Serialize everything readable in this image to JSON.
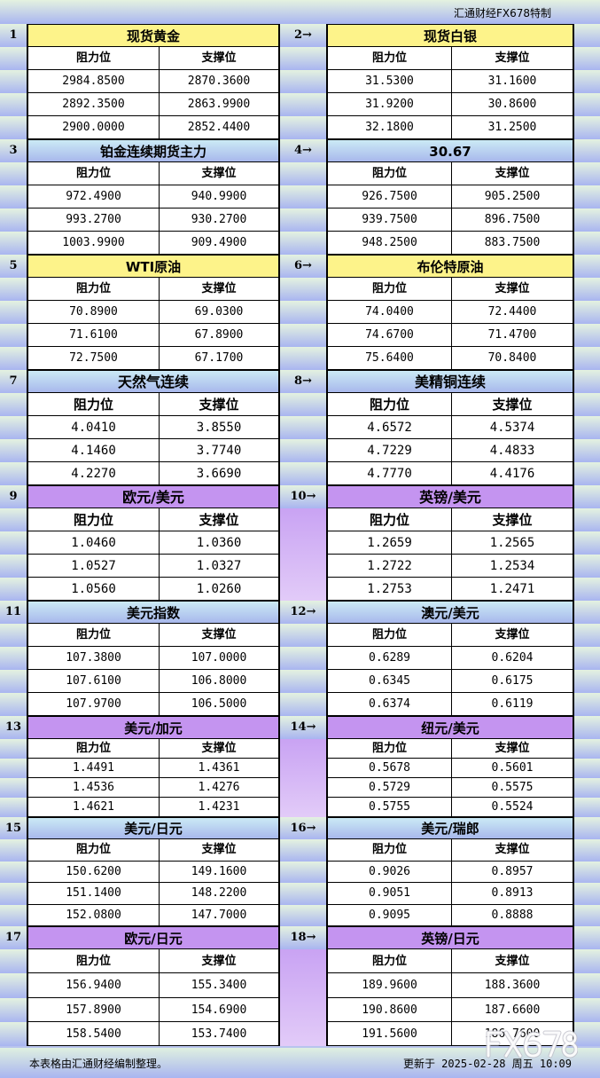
{
  "title": "汇通财经FX678特制",
  "colors": {
    "yellow": "#fdf38a",
    "blue": "#b8d0f0",
    "purple": "#c494f0"
  },
  "col_labels": {
    "resistance": "阻力位",
    "support": "支撑位"
  },
  "sections": [
    {
      "num": "1",
      "name": "现货黄金",
      "theme": "yellow",
      "rows": [
        [
          "2984.8500",
          "2870.3600"
        ],
        [
          "2892.3500",
          "2863.9900"
        ],
        [
          "2900.0000",
          "2852.4400"
        ]
      ]
    },
    {
      "num": "2→",
      "name": "现货白银",
      "theme": "yellow",
      "rows": [
        [
          "31.5300",
          "31.1600"
        ],
        [
          "31.9200",
          "30.8600"
        ],
        [
          "32.1800",
          "31.2500"
        ]
      ]
    },
    {
      "num": "3",
      "name": "铂金连续期货主力",
      "theme": "blue",
      "rows": [
        [
          "972.4900",
          "940.9900"
        ],
        [
          "993.2700",
          "930.2700"
        ],
        [
          "1003.9900",
          "909.4900"
        ]
      ]
    },
    {
      "num": "4→",
      "name": "30.67",
      "theme": "blue",
      "rows": [
        [
          "926.7500",
          "905.2500"
        ],
        [
          "939.7500",
          "896.7500"
        ],
        [
          "948.2500",
          "883.7500"
        ]
      ]
    },
    {
      "num": "5",
      "name": "WTI原油",
      "theme": "yellow",
      "rows": [
        [
          "70.8900",
          "69.0300"
        ],
        [
          "71.6100",
          "67.8900"
        ],
        [
          "72.7500",
          "67.1700"
        ]
      ]
    },
    {
      "num": "6→",
      "name": "布伦特原油",
      "theme": "yellow",
      "rows": [
        [
          "74.0400",
          "72.4400"
        ],
        [
          "74.6700",
          "71.4700"
        ],
        [
          "75.6400",
          "70.8400"
        ]
      ]
    },
    {
      "num": "7",
      "name": "天然气连续",
      "theme": "blue",
      "rows": [
        [
          "4.0410",
          "3.8550"
        ],
        [
          "4.1460",
          "3.7740"
        ],
        [
          "4.2270",
          "3.6690"
        ]
      ]
    },
    {
      "num": "8→",
      "name": "美精铜连续",
      "theme": "blue",
      "rows": [
        [
          "4.6572",
          "4.5374"
        ],
        [
          "4.7229",
          "4.4833"
        ],
        [
          "4.7770",
          "4.4176"
        ]
      ]
    },
    {
      "num": "9",
      "name": "欧元/美元",
      "theme": "purple",
      "rows": [
        [
          "1.0460",
          "1.0360"
        ],
        [
          "1.0527",
          "1.0327"
        ],
        [
          "1.0560",
          "1.0260"
        ]
      ]
    },
    {
      "num": "10→",
      "name": "英镑/美元",
      "theme": "purple",
      "rows": [
        [
          "1.2659",
          "1.2565"
        ],
        [
          "1.2722",
          "1.2534"
        ],
        [
          "1.2753",
          "1.2471"
        ]
      ]
    },
    {
      "num": "11",
      "name": "美元指数",
      "theme": "blue",
      "rows": [
        [
          "107.3800",
          "107.0000"
        ],
        [
          "107.6100",
          "106.8000"
        ],
        [
          "107.9700",
          "106.5000"
        ]
      ]
    },
    {
      "num": "12→",
      "name": "澳元/美元",
      "theme": "blue",
      "rows": [
        [
          "0.6289",
          "0.6204"
        ],
        [
          "0.6345",
          "0.6175"
        ],
        [
          "0.6374",
          "0.6119"
        ]
      ]
    },
    {
      "num": "13",
      "name": "美元/加元",
      "theme": "purple",
      "rows": [
        [
          "1.4491",
          "1.4361"
        ],
        [
          "1.4536",
          "1.4276"
        ],
        [
          "1.4621",
          "1.4231"
        ]
      ]
    },
    {
      "num": "14→",
      "name": "纽元/美元",
      "theme": "purple",
      "rows": [
        [
          "0.5678",
          "0.5601"
        ],
        [
          "0.5729",
          "0.5575"
        ],
        [
          "0.5755",
          "0.5524"
        ]
      ]
    },
    {
      "num": "15",
      "name": "美元/日元",
      "theme": "blue",
      "rows": [
        [
          "150.6200",
          "149.1600"
        ],
        [
          "151.1400",
          "148.2200"
        ],
        [
          "152.0800",
          "147.7000"
        ]
      ]
    },
    {
      "num": "16→",
      "name": "美元/瑞郎",
      "theme": "blue",
      "rows": [
        [
          "0.9026",
          "0.8957"
        ],
        [
          "0.9051",
          "0.8913"
        ],
        [
          "0.9095",
          "0.8888"
        ]
      ]
    },
    {
      "num": "17",
      "name": "欧元/日元",
      "theme": "purple",
      "rows": [
        [
          "156.9400",
          "155.3400"
        ],
        [
          "157.8900",
          "154.6900"
        ],
        [
          "158.5400",
          "153.7400"
        ]
      ]
    },
    {
      "num": "18→",
      "name": "英镑/日元",
      "theme": "purple",
      "rows": [
        [
          "189.9600",
          "188.3600"
        ],
        [
          "190.8600",
          "187.6600"
        ],
        [
          "191.5600",
          "186.7600"
        ]
      ]
    }
  ],
  "footer": {
    "note": "本表格由汇通财经编制整理。",
    "updated": "更新于 2025-02-28 周五 10:09"
  },
  "watermark": "FX678"
}
